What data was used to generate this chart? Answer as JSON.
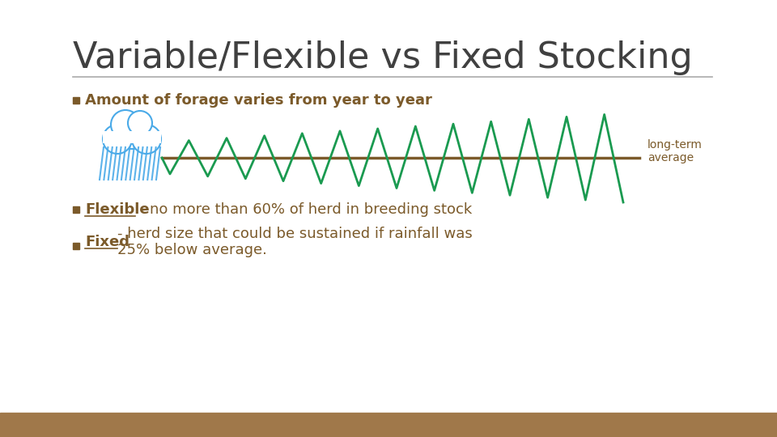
{
  "title": "Variable/Flexible vs Fixed Stocking",
  "title_color": "#404040",
  "title_fontsize": 32,
  "background_color": "#ffffff",
  "footer_color": "#A0784A",
  "bullet_color": "#7B5A2A",
  "bullet1_text": "Amount of forage varies from year to year",
  "bullet2_text_underline": "Flexible",
  "bullet2_text_rest": " - no more than 60% of herd in breeding stock",
  "bullet3_text_underline": "Fixed",
  "bullet3_text_rest": "- herd size that could be sustained if rainfall was\n25% below average.",
  "line_avg_color": "#7B5A2A",
  "zigzag_color": "#1A9A50",
  "long_term_label": "long-term\naverage",
  "cloud_outline_color": "#4aaae8",
  "rain_color": "#4aaae8",
  "separator_color": "#aaaaaa"
}
